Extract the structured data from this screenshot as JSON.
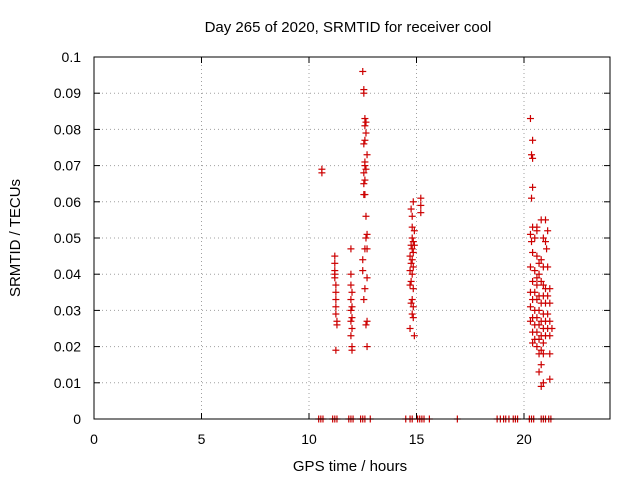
{
  "chart_data": {
    "type": "scatter",
    "title": "Day 265 of 2020, SRMTID for receiver cool",
    "xlabel": "GPS time / hours",
    "ylabel": "SRMTID / TECUs",
    "xlim": [
      0,
      24
    ],
    "ylim": [
      0,
      0.1
    ],
    "xticks": [
      0,
      5,
      10,
      15,
      20
    ],
    "xtick_labels": [
      "0",
      "5",
      "10",
      "15",
      "20"
    ],
    "yticks": [
      0,
      0.01,
      0.02,
      0.03,
      0.04,
      0.05,
      0.06,
      0.07,
      0.08,
      0.09,
      0.1
    ],
    "ytick_labels": [
      "0",
      "0.01",
      "0.02",
      "0.03",
      "0.04",
      "0.05",
      "0.06",
      "0.07",
      "0.08",
      "0.09",
      "0.1"
    ],
    "grid": true,
    "marker": "+",
    "color": "#cc0000",
    "series": [
      {
        "points": [
          [
            10.6,
            0.068
          ],
          [
            10.6,
            0.069
          ],
          [
            11.2,
            0.045
          ],
          [
            11.2,
            0.043
          ],
          [
            11.2,
            0.041
          ],
          [
            11.2,
            0.04
          ],
          [
            11.2,
            0.039
          ],
          [
            11.25,
            0.037
          ],
          [
            11.25,
            0.035
          ],
          [
            11.25,
            0.033
          ],
          [
            11.25,
            0.031
          ],
          [
            11.25,
            0.029
          ],
          [
            11.3,
            0.027
          ],
          [
            11.3,
            0.026
          ],
          [
            11.25,
            0.019
          ],
          [
            11.95,
            0.047
          ],
          [
            11.95,
            0.04
          ],
          [
            11.95,
            0.037
          ],
          [
            12.0,
            0.035
          ],
          [
            11.95,
            0.033
          ],
          [
            12.0,
            0.031
          ],
          [
            11.95,
            0.03
          ],
          [
            12.0,
            0.028
          ],
          [
            11.95,
            0.027
          ],
          [
            12.0,
            0.025
          ],
          [
            11.95,
            0.023
          ],
          [
            12.0,
            0.02
          ],
          [
            12.0,
            0.019
          ],
          [
            12.5,
            0.096
          ],
          [
            12.55,
            0.091
          ],
          [
            12.55,
            0.09
          ],
          [
            12.6,
            0.083
          ],
          [
            12.65,
            0.082
          ],
          [
            12.6,
            0.081
          ],
          [
            12.65,
            0.079
          ],
          [
            12.6,
            0.077
          ],
          [
            12.55,
            0.076
          ],
          [
            12.7,
            0.073
          ],
          [
            12.6,
            0.071
          ],
          [
            12.6,
            0.07
          ],
          [
            12.65,
            0.069
          ],
          [
            12.55,
            0.068
          ],
          [
            12.6,
            0.066
          ],
          [
            12.55,
            0.065
          ],
          [
            12.6,
            0.062
          ],
          [
            12.55,
            0.062
          ],
          [
            12.65,
            0.056
          ],
          [
            12.7,
            0.051
          ],
          [
            12.65,
            0.05
          ],
          [
            12.6,
            0.047
          ],
          [
            12.7,
            0.047
          ],
          [
            12.5,
            0.044
          ],
          [
            12.5,
            0.041
          ],
          [
            12.7,
            0.039
          ],
          [
            12.6,
            0.036
          ],
          [
            12.55,
            0.033
          ],
          [
            12.7,
            0.027
          ],
          [
            12.65,
            0.026
          ],
          [
            12.7,
            0.02
          ],
          [
            14.75,
            0.058
          ],
          [
            14.8,
            0.056
          ],
          [
            14.85,
            0.06
          ],
          [
            14.8,
            0.053
          ],
          [
            14.9,
            0.052
          ],
          [
            14.8,
            0.05
          ],
          [
            14.85,
            0.049
          ],
          [
            14.75,
            0.048
          ],
          [
            14.9,
            0.048
          ],
          [
            14.8,
            0.047
          ],
          [
            14.85,
            0.046
          ],
          [
            14.7,
            0.045
          ],
          [
            14.8,
            0.044
          ],
          [
            14.75,
            0.043
          ],
          [
            14.85,
            0.042
          ],
          [
            14.7,
            0.041
          ],
          [
            14.8,
            0.04
          ],
          [
            14.75,
            0.038
          ],
          [
            14.7,
            0.037
          ],
          [
            14.85,
            0.036
          ],
          [
            14.8,
            0.033
          ],
          [
            14.75,
            0.032
          ],
          [
            14.85,
            0.031
          ],
          [
            14.8,
            0.029
          ],
          [
            14.85,
            0.028
          ],
          [
            14.7,
            0.025
          ],
          [
            14.9,
            0.023
          ],
          [
            15.2,
            0.061
          ],
          [
            15.2,
            0.059
          ],
          [
            15.2,
            0.057
          ],
          [
            20.3,
            0.083
          ],
          [
            20.4,
            0.077
          ],
          [
            20.35,
            0.073
          ],
          [
            20.4,
            0.072
          ],
          [
            20.4,
            0.064
          ],
          [
            20.35,
            0.061
          ],
          [
            20.4,
            0.053
          ],
          [
            20.3,
            0.051
          ],
          [
            20.5,
            0.05
          ],
          [
            20.35,
            0.049
          ],
          [
            20.6,
            0.053
          ],
          [
            20.6,
            0.052
          ],
          [
            20.8,
            0.055
          ],
          [
            21.0,
            0.055
          ],
          [
            21.1,
            0.052
          ],
          [
            20.9,
            0.05
          ],
          [
            21.0,
            0.049
          ],
          [
            21.05,
            0.047
          ],
          [
            20.4,
            0.046
          ],
          [
            20.6,
            0.045
          ],
          [
            20.8,
            0.044
          ],
          [
            20.7,
            0.043
          ],
          [
            20.9,
            0.042
          ],
          [
            21.1,
            0.042
          ],
          [
            20.3,
            0.042
          ],
          [
            20.5,
            0.041
          ],
          [
            20.7,
            0.04
          ],
          [
            20.6,
            0.039
          ],
          [
            20.8,
            0.038
          ],
          [
            20.4,
            0.038
          ],
          [
            20.6,
            0.037
          ],
          [
            20.9,
            0.037
          ],
          [
            21.0,
            0.036
          ],
          [
            21.2,
            0.036
          ],
          [
            20.3,
            0.035
          ],
          [
            20.5,
            0.035
          ],
          [
            20.7,
            0.034
          ],
          [
            20.9,
            0.034
          ],
          [
            21.1,
            0.034
          ],
          [
            20.4,
            0.033
          ],
          [
            20.6,
            0.033
          ],
          [
            20.8,
            0.032
          ],
          [
            21.0,
            0.032
          ],
          [
            21.2,
            0.032
          ],
          [
            20.3,
            0.031
          ],
          [
            20.5,
            0.03
          ],
          [
            20.7,
            0.03
          ],
          [
            20.9,
            0.029
          ],
          [
            21.1,
            0.029
          ],
          [
            20.4,
            0.028
          ],
          [
            20.6,
            0.028
          ],
          [
            20.8,
            0.027
          ],
          [
            21.0,
            0.027
          ],
          [
            21.2,
            0.027
          ],
          [
            20.3,
            0.027
          ],
          [
            20.5,
            0.026
          ],
          [
            20.7,
            0.026
          ],
          [
            20.9,
            0.025
          ],
          [
            21.1,
            0.025
          ],
          [
            21.3,
            0.025
          ],
          [
            20.4,
            0.024
          ],
          [
            20.6,
            0.024
          ],
          [
            20.8,
            0.023
          ],
          [
            21.0,
            0.023
          ],
          [
            21.2,
            0.023
          ],
          [
            20.5,
            0.022
          ],
          [
            20.7,
            0.022
          ],
          [
            20.9,
            0.021
          ],
          [
            20.4,
            0.021
          ],
          [
            20.6,
            0.02
          ],
          [
            20.8,
            0.019
          ],
          [
            20.7,
            0.018
          ],
          [
            20.9,
            0.018
          ],
          [
            21.2,
            0.018
          ],
          [
            20.8,
            0.015
          ],
          [
            20.7,
            0.013
          ],
          [
            20.9,
            0.01
          ],
          [
            20.8,
            0.009
          ],
          [
            21.2,
            0.011
          ]
        ]
      },
      {
        "points": [
          [
            10.45,
            0.0
          ],
          [
            10.55,
            0.0
          ],
          [
            10.65,
            0.0
          ],
          [
            11.1,
            0.0
          ],
          [
            11.2,
            0.0
          ],
          [
            11.3,
            0.0
          ],
          [
            11.85,
            0.0
          ],
          [
            11.95,
            0.0
          ],
          [
            12.05,
            0.0
          ],
          [
            12.4,
            0.0
          ],
          [
            12.5,
            0.0
          ],
          [
            12.6,
            0.0
          ],
          [
            12.85,
            0.0
          ],
          [
            14.5,
            0.0
          ],
          [
            14.7,
            0.0
          ],
          [
            14.8,
            0.0
          ],
          [
            15.05,
            0.0
          ],
          [
            15.15,
            0.0
          ],
          [
            15.25,
            0.0
          ],
          [
            15.35,
            0.0
          ],
          [
            15.6,
            0.0
          ],
          [
            16.9,
            0.0
          ],
          [
            18.75,
            0.0
          ],
          [
            18.9,
            0.0
          ],
          [
            19.05,
            0.0
          ],
          [
            19.15,
            0.0
          ],
          [
            19.3,
            0.0
          ],
          [
            19.5,
            0.0
          ],
          [
            19.6,
            0.0
          ],
          [
            19.7,
            0.0
          ],
          [
            20.25,
            0.0
          ],
          [
            20.35,
            0.0
          ],
          [
            20.45,
            0.0
          ],
          [
            20.8,
            0.0
          ],
          [
            20.9,
            0.0
          ],
          [
            21.0,
            0.0
          ],
          [
            21.15,
            0.0
          ],
          [
            21.25,
            0.0
          ]
        ]
      }
    ]
  }
}
